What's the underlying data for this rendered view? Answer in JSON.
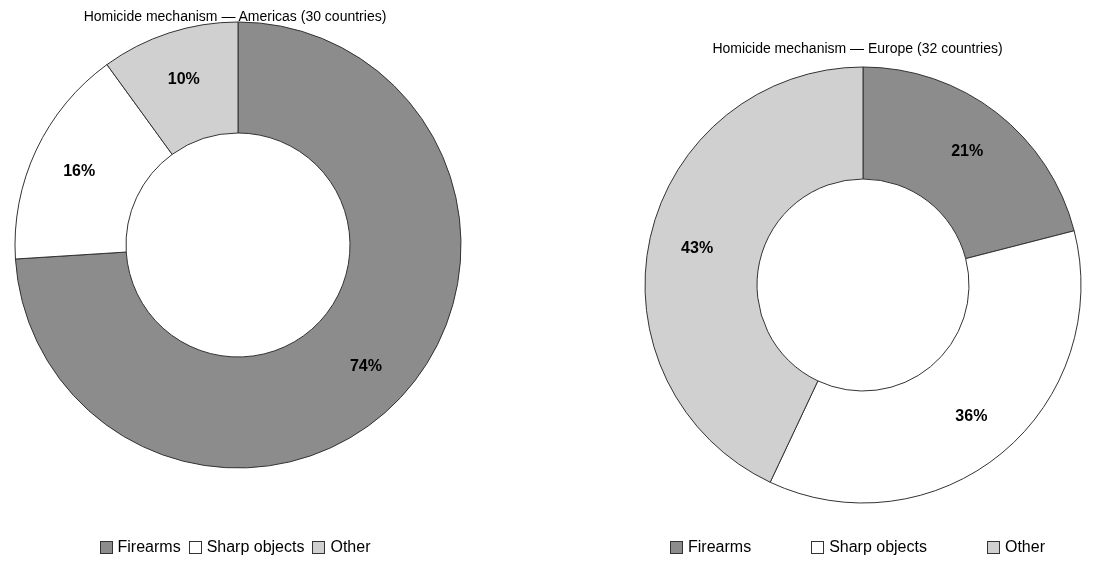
{
  "chart_data": [
    {
      "type": "donut",
      "title": "Homicide mechanism — Americas (30 countries)",
      "categories": [
        "Firearms",
        "Sharp objects",
        "Other"
      ],
      "values": [
        74,
        16,
        10
      ],
      "colors": [
        "#8c8c8c",
        "#ffffff",
        "#d0d0d0"
      ],
      "value_labels": [
        "74%",
        "16%",
        "10%"
      ],
      "legend": "bottom"
    },
    {
      "type": "donut",
      "title": "Homicide mechanism — Europe (32 countries)",
      "categories": [
        "Firearms",
        "Sharp objects",
        "Other"
      ],
      "values": [
        21,
        36,
        43
      ],
      "colors": [
        "#8c8c8c",
        "#ffffff",
        "#d0d0d0"
      ],
      "value_labels": [
        "21%",
        "36%",
        "43%"
      ],
      "legend": "bottom"
    }
  ]
}
